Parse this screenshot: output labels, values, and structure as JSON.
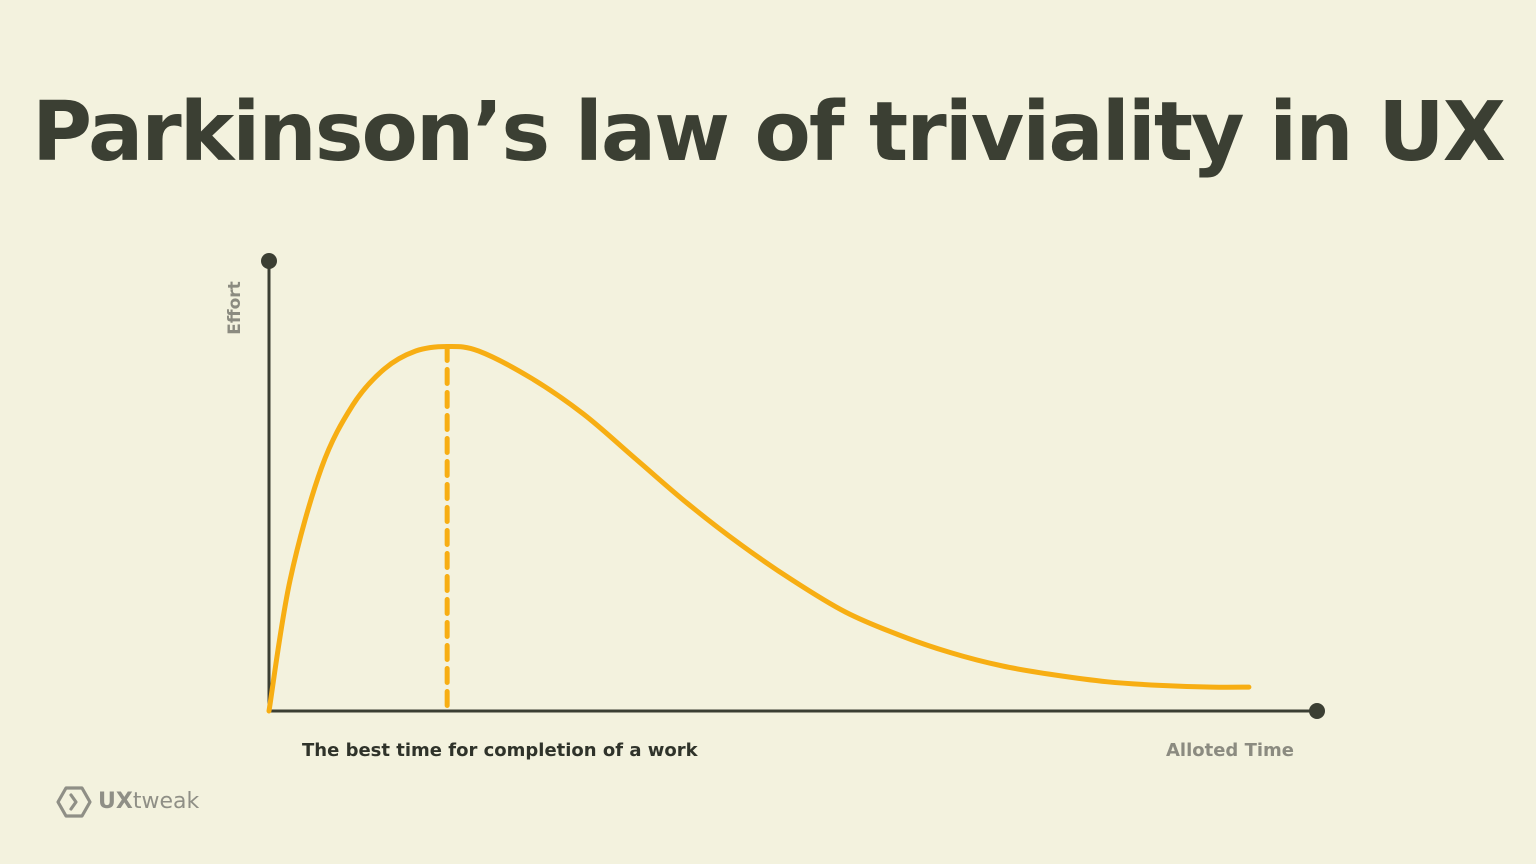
{
  "colors": {
    "background": "#F3F2DE",
    "title": "#3B3F33",
    "axis": "#3B3F33",
    "curve": "#F7AE13",
    "muted_label": "#8B8B80",
    "dark_label": "#2F332A",
    "logo": "#8F8F86"
  },
  "title": "Parkinson’s law of triviality in UX",
  "logo": {
    "icon": "uxtweak-hexagon-chevron-icon",
    "brand_bold": "UX",
    "brand_light": "tweak"
  },
  "chart_data": {
    "type": "line",
    "title": "Parkinson’s law of triviality in UX",
    "xlabel": "Alloted Time",
    "ylabel": "Effort",
    "grid": false,
    "legend": "none",
    "xlim": [
      0,
      1
    ],
    "ylim": [
      0,
      1
    ],
    "series": [
      {
        "x": [
          0.0,
          0.02,
          0.05,
          0.08,
          0.11,
          0.14,
          0.17,
          0.2,
          0.25,
          0.3,
          0.35,
          0.4,
          0.45,
          0.5,
          0.55,
          0.6,
          0.65,
          0.7,
          0.75,
          0.8,
          0.85,
          0.9,
          0.935
        ],
        "y": [
          0.0,
          0.29,
          0.54,
          0.68,
          0.76,
          0.8,
          0.81,
          0.8,
          0.74,
          0.66,
          0.56,
          0.46,
          0.37,
          0.29,
          0.22,
          0.17,
          0.13,
          0.1,
          0.08,
          0.065,
          0.057,
          0.053,
          0.053
        ]
      }
    ],
    "annotations": [
      {
        "type": "vertical-dashed-line",
        "x": 0.17,
        "label": "The best time for completion of a work"
      }
    ]
  }
}
